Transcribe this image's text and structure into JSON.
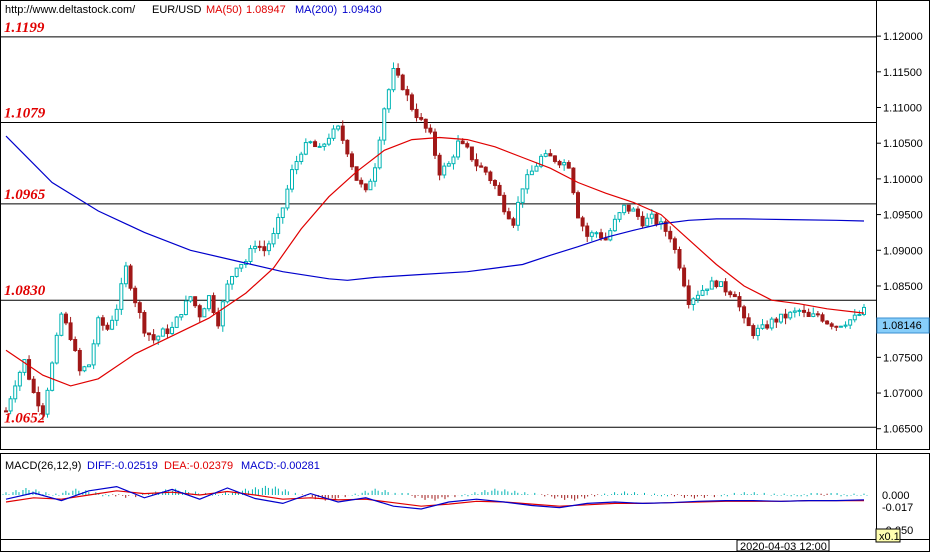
{
  "header": {
    "url": "http://www.deltastock.com/",
    "symbol": "EUR/USD",
    "ma50_label": "MA(50)",
    "ma50_value": "1.08947",
    "ma200_label": "MA(200)",
    "ma200_value": "1.09430"
  },
  "colors": {
    "ma50": "#e00000",
    "ma200": "#0000cc",
    "candle_up": "#00b4b4",
    "candle_down": "#a01818",
    "level": "#000000",
    "price_tag": "#87cefa"
  },
  "chart_data": {
    "type": "candlestick",
    "y_axis_ticks": [
      "1.12000",
      "1.11500",
      "1.11000",
      "1.10500",
      "1.10000",
      "1.09500",
      "1.09000",
      "1.08500",
      "1.08000",
      "1.07500",
      "1.07000",
      "1.06500"
    ],
    "ylim": [
      1.0623,
      1.1245
    ],
    "current_price": "1.08146",
    "levels": [
      {
        "label": "1.1199",
        "value": 1.1199
      },
      {
        "label": "1.1079",
        "value": 1.1079
      },
      {
        "label": "1.0965",
        "value": 1.0965
      },
      {
        "label": "1.0830",
        "value": 1.083
      },
      {
        "label": "1.0652",
        "value": 1.0652
      }
    ],
    "price_path": [
      [
        0,
        1.0675
      ],
      [
        2,
        1.0715
      ],
      [
        4,
        1.0745
      ],
      [
        6,
        1.07
      ],
      [
        8,
        1.0675
      ],
      [
        10,
        1.074
      ],
      [
        12,
        1.081
      ],
      [
        14,
        1.078
      ],
      [
        16,
        1.073
      ],
      [
        18,
        1.074
      ],
      [
        20,
        1.08
      ],
      [
        22,
        1.079
      ],
      [
        24,
        1.082
      ],
      [
        26,
        1.0875
      ],
      [
        28,
        1.083
      ],
      [
        30,
        1.079
      ],
      [
        32,
        1.0775
      ],
      [
        34,
        1.0785
      ],
      [
        36,
        1.079
      ],
      [
        38,
        1.0815
      ],
      [
        40,
        1.0835
      ],
      [
        42,
        1.081
      ],
      [
        44,
        1.0835
      ],
      [
        46,
        1.08
      ],
      [
        48,
        1.085
      ],
      [
        50,
        1.088
      ],
      [
        52,
        1.0885
      ],
      [
        54,
        1.091
      ],
      [
        56,
        1.09
      ],
      [
        58,
        1.092
      ],
      [
        60,
        1.096
      ],
      [
        62,
        1.101
      ],
      [
        64,
        1.104
      ],
      [
        66,
        1.105
      ],
      [
        68,
        1.104
      ],
      [
        70,
        1.106
      ],
      [
        72,
        1.107
      ],
      [
        74,
        1.104
      ],
      [
        76,
        1.1
      ],
      [
        78,
        1.098
      ],
      [
        80,
        1.102
      ],
      [
        82,
        1.11
      ],
      [
        84,
        1.115
      ],
      [
        86,
        1.113
      ],
      [
        88,
        1.11
      ],
      [
        90,
        1.108
      ],
      [
        92,
        1.106
      ],
      [
        94,
        1.101
      ],
      [
        96,
        1.102
      ],
      [
        98,
        1.105
      ],
      [
        100,
        1.104
      ],
      [
        102,
        1.102
      ],
      [
        104,
        1.101
      ],
      [
        106,
        1.099
      ],
      [
        108,
        1.096
      ],
      [
        110,
        1.094
      ],
      [
        112,
        1.099
      ],
      [
        114,
        1.101
      ],
      [
        116,
        1.103
      ],
      [
        118,
        1.103
      ],
      [
        120,
        1.1025
      ],
      [
        122,
        1.102
      ],
      [
        124,
        1.095
      ],
      [
        126,
        1.092
      ],
      [
        128,
        1.0925
      ],
      [
        130,
        1.0915
      ],
      [
        132,
        1.094
      ],
      [
        134,
        1.096
      ],
      [
        136,
        1.0955
      ],
      [
        138,
        1.094
      ],
      [
        140,
        1.0945
      ],
      [
        142,
        1.0935
      ],
      [
        144,
        1.092
      ],
      [
        146,
        1.088
      ],
      [
        148,
        1.083
      ],
      [
        150,
        1.084
      ],
      [
        152,
        1.085
      ],
      [
        154,
        1.0855
      ],
      [
        156,
        1.0845
      ],
      [
        158,
        1.084
      ],
      [
        160,
        1.08
      ],
      [
        162,
        1.0785
      ],
      [
        164,
        1.079
      ],
      [
        166,
        1.08
      ],
      [
        168,
        1.0805
      ],
      [
        170,
        1.081
      ],
      [
        172,
        1.0815
      ],
      [
        174,
        1.0805
      ],
      [
        176,
        1.081
      ],
      [
        178,
        1.08
      ],
      [
        180,
        1.0795
      ],
      [
        182,
        1.08
      ],
      [
        184,
        1.0805
      ],
      [
        186,
        1.0815
      ]
    ],
    "ma50_path": [
      [
        0,
        1.076
      ],
      [
        8,
        1.0725
      ],
      [
        14,
        1.071
      ],
      [
        20,
        1.072
      ],
      [
        28,
        1.0755
      ],
      [
        36,
        1.078
      ],
      [
        44,
        1.0805
      ],
      [
        52,
        1.084
      ],
      [
        58,
        1.0875
      ],
      [
        64,
        1.093
      ],
      [
        70,
        1.0975
      ],
      [
        76,
        1.101
      ],
      [
        82,
        1.104
      ],
      [
        88,
        1.1055
      ],
      [
        94,
        1.1058
      ],
      [
        100,
        1.1055
      ],
      [
        106,
        1.1045
      ],
      [
        112,
        1.103
      ],
      [
        118,
        1.1015
      ],
      [
        124,
        1.0995
      ],
      [
        130,
        1.098
      ],
      [
        136,
        1.0967
      ],
      [
        142,
        1.095
      ],
      [
        148,
        1.0915
      ],
      [
        154,
        1.088
      ],
      [
        160,
        1.085
      ],
      [
        166,
        1.083
      ],
      [
        172,
        1.0825
      ],
      [
        178,
        1.0818
      ],
      [
        186,
        1.0812
      ]
    ],
    "ma200_path": [
      [
        0,
        1.106
      ],
      [
        10,
        1.0995
      ],
      [
        20,
        1.0955
      ],
      [
        30,
        1.0925
      ],
      [
        40,
        1.09
      ],
      [
        50,
        1.0885
      ],
      [
        60,
        1.087
      ],
      [
        70,
        1.086
      ],
      [
        74,
        1.0858
      ],
      [
        80,
        1.0862
      ],
      [
        90,
        1.0866
      ],
      [
        100,
        1.087
      ],
      [
        106,
        1.0875
      ],
      [
        112,
        1.088
      ],
      [
        118,
        1.0893
      ],
      [
        124,
        1.0905
      ],
      [
        130,
        1.0918
      ],
      [
        136,
        1.0928
      ],
      [
        142,
        1.0937
      ],
      [
        148,
        1.0942
      ],
      [
        154,
        1.0944
      ],
      [
        160,
        1.0944
      ],
      [
        170,
        1.0943
      ],
      [
        180,
        1.0942
      ],
      [
        186,
        1.0941
      ]
    ],
    "macd": {
      "title": "MACD(26,12,9)",
      "diff_label": "DIFF:-0.02519",
      "dea_label": "DEA:-0.02379",
      "macd_label": "MACD:-0.00281",
      "y_ticks": [
        "0.000",
        "-0.017",
        "-0.050"
      ],
      "ylim": [
        -0.06,
        0.03
      ],
      "histogram": [
        0.004,
        0.007,
        0.01,
        0.008,
        0.004,
        0.002,
        0.006,
        0.009,
        0.007,
        0.004,
        0.001,
        -0.002,
        -0.004,
        -0.003,
        0.0,
        0.005,
        0.008,
        0.009,
        0.007,
        0.005,
        0.003,
        0.002,
        0.004,
        0.006,
        0.009,
        0.011,
        0.013,
        0.012,
        0.008,
        0.003,
        -0.002,
        -0.006,
        -0.008,
        -0.007,
        -0.003,
        0.002,
        0.006,
        0.009,
        0.007,
        0.003,
        0.0,
        -0.004,
        -0.007,
        -0.008,
        -0.006,
        -0.003,
        0.001,
        0.004,
        0.007,
        0.009,
        0.008,
        0.006,
        0.004,
        0.003,
        -0.002,
        -0.005,
        -0.007,
        -0.008,
        -0.005,
        -0.002,
        0.002,
        0.004,
        0.005,
        0.004,
        0.003,
        0.002,
        0.001,
        -0.002,
        -0.004,
        -0.005,
        -0.004,
        -0.003,
        0.001,
        0.003,
        0.004,
        0.004,
        0.003,
        0.002,
        0.002,
        0.001,
        0.001,
        0.0,
        -0.001,
        0.0,
        0.001,
        0.002,
        0.002
      ],
      "diff_path": [
        [
          0,
          -0.006
        ],
        [
          6,
          0.003
        ],
        [
          12,
          -0.008
        ],
        [
          18,
          0.006
        ],
        [
          24,
          0.012
        ],
        [
          30,
          -0.004
        ],
        [
          36,
          0.008
        ],
        [
          42,
          -0.006
        ],
        [
          48,
          0.01
        ],
        [
          54,
          -0.005
        ],
        [
          60,
          -0.012
        ],
        [
          66,
          0.002
        ],
        [
          72,
          -0.01
        ],
        [
          78,
          -0.004
        ],
        [
          84,
          -0.016
        ],
        [
          90,
          -0.02
        ],
        [
          96,
          -0.01
        ],
        [
          102,
          -0.006
        ],
        [
          108,
          -0.01
        ],
        [
          114,
          -0.015
        ],
        [
          120,
          -0.018
        ],
        [
          126,
          -0.012
        ],
        [
          132,
          -0.01
        ],
        [
          138,
          -0.012
        ],
        [
          144,
          -0.011
        ],
        [
          150,
          -0.009
        ],
        [
          156,
          -0.008
        ],
        [
          162,
          -0.008
        ],
        [
          168,
          -0.009
        ],
        [
          174,
          -0.008
        ],
        [
          180,
          -0.008
        ],
        [
          186,
          -0.007
        ]
      ],
      "dea_path": [
        [
          0,
          -0.01
        ],
        [
          6,
          -0.004
        ],
        [
          12,
          -0.006
        ],
        [
          18,
          0.0
        ],
        [
          24,
          0.006
        ],
        [
          30,
          0.002
        ],
        [
          36,
          0.004
        ],
        [
          42,
          0.0
        ],
        [
          48,
          0.005
        ],
        [
          54,
          0.0
        ],
        [
          60,
          -0.006
        ],
        [
          66,
          -0.004
        ],
        [
          72,
          -0.007
        ],
        [
          78,
          -0.006
        ],
        [
          84,
          -0.011
        ],
        [
          90,
          -0.016
        ],
        [
          96,
          -0.013
        ],
        [
          102,
          -0.009
        ],
        [
          108,
          -0.01
        ],
        [
          114,
          -0.013
        ],
        [
          120,
          -0.016
        ],
        [
          126,
          -0.014
        ],
        [
          132,
          -0.012
        ],
        [
          138,
          -0.012
        ],
        [
          144,
          -0.011
        ],
        [
          150,
          -0.01
        ],
        [
          156,
          -0.009
        ],
        [
          162,
          -0.009
        ],
        [
          168,
          -0.009
        ],
        [
          174,
          -0.008
        ],
        [
          180,
          -0.008
        ],
        [
          186,
          -0.008
        ]
      ]
    },
    "time_label": "2020-04-03 12:00",
    "zoom_label": "x0.1"
  }
}
